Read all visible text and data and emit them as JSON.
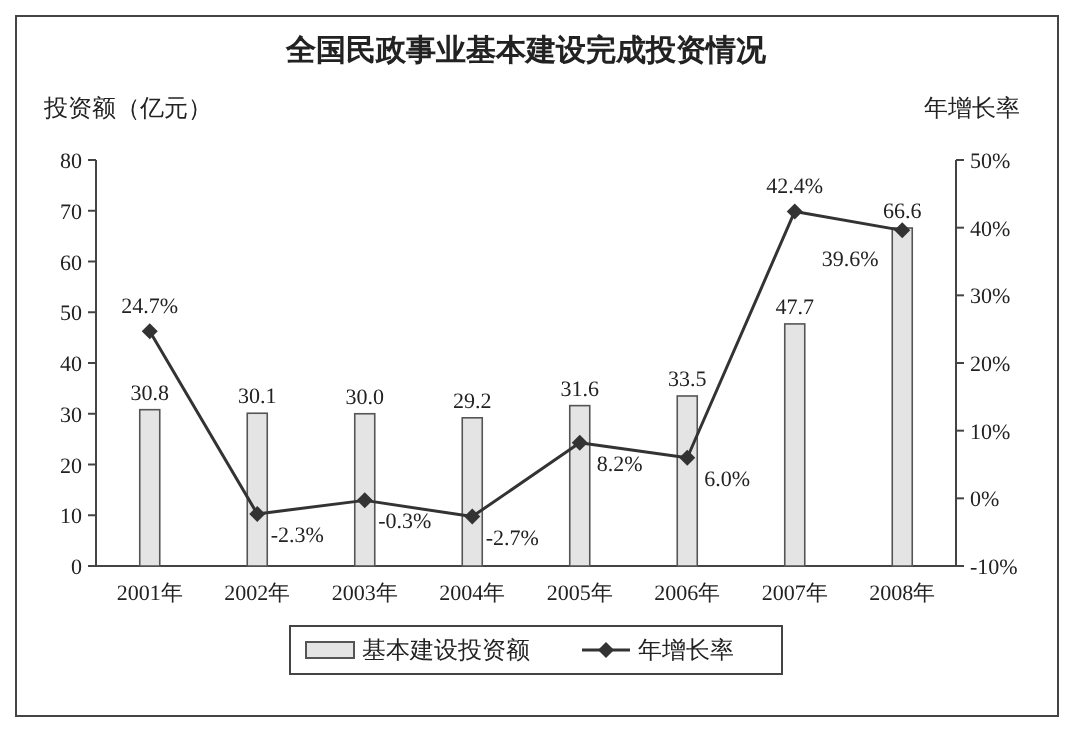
{
  "chart_data": {
    "type": "bar",
    "title": "全国民政事业基本建设完成投资情况",
    "ylabel": "投资额（亿元）",
    "y2label": "年增长率",
    "categories": [
      "2001年",
      "2002年",
      "2003年",
      "2004年",
      "2005年",
      "2006年",
      "2007年",
      "2008年"
    ],
    "series": [
      {
        "name": "基本建设投资额",
        "color": "#e4e4e4",
        "values": [
          30.8,
          30.1,
          30.0,
          29.2,
          31.6,
          33.5,
          47.7,
          66.6
        ],
        "value_labels": [
          "30.8",
          "30.1",
          "30.0",
          "29.2",
          "31.6",
          "33.5",
          "47.7",
          "66.6"
        ]
      },
      {
        "name": "年增长率",
        "type": "line",
        "axis": "y2",
        "color": "#333333",
        "marker": "diamond",
        "values": [
          24.7,
          -2.3,
          -0.3,
          -2.7,
          8.2,
          6.0,
          42.4,
          39.6
        ],
        "value_labels": [
          "24.7%",
          "-2.3%",
          "-0.3%",
          "-2.7%",
          "8.2%",
          "6.0%",
          "42.4%",
          "39.6%"
        ]
      }
    ],
    "ylim": [
      0,
      80
    ],
    "yticks": [
      0,
      10,
      20,
      30,
      40,
      50,
      60,
      70,
      80
    ],
    "y2lim": [
      -10,
      50
    ],
    "y2ticks": [
      {
        "value": -10,
        "label": "-10%"
      },
      {
        "value": 0,
        "label": "0%"
      },
      {
        "value": 10,
        "label": "10%"
      },
      {
        "value": 20,
        "label": "20%"
      },
      {
        "value": 30,
        "label": "30%"
      },
      {
        "value": 40,
        "label": "40%"
      },
      {
        "value": 50,
        "label": "50%"
      }
    ],
    "legend": "bottom",
    "grid": false
  }
}
